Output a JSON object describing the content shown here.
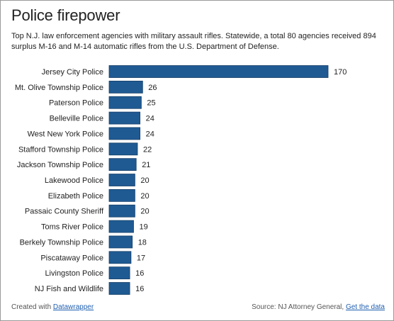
{
  "header": {
    "title": "Police firepower",
    "subtitle": "Top N.J. law enforcement agencies with military assault rifles. Statewide, a total 80 agencies received 894 surplus M-16 and M-14 automatic rifles from the U.S. Department of Defense."
  },
  "colors": {
    "bar": "#1f5a93",
    "bar_border": "#173f66",
    "link": "#1f5fb0"
  },
  "footer": {
    "credit_prefix": "Created with ",
    "credit_link": "Datawrapper",
    "source_prefix": "Source: NJ Attorney General, ",
    "source_link": "Get the data"
  },
  "chart_data": {
    "type": "bar",
    "orientation": "horizontal",
    "categories": [
      "Jersey City Police",
      "Mt. Olive Township Police",
      "Paterson Police",
      "Belleville Police",
      "West New York Police",
      "Stafford Township Police",
      "Jackson Township Police",
      "Lakewood Police",
      "Elizabeth Police",
      "Passaic County Sheriff",
      "Toms River Police",
      "Berkely Township Police",
      "Piscataway Police",
      "Livingston Police",
      "NJ Fish and Wildlife"
    ],
    "values": [
      170,
      26,
      25,
      24,
      24,
      22,
      21,
      20,
      20,
      20,
      19,
      18,
      17,
      16,
      16
    ],
    "xlim": [
      0,
      170
    ],
    "data_labels": true,
    "grid": false,
    "legend": false
  }
}
